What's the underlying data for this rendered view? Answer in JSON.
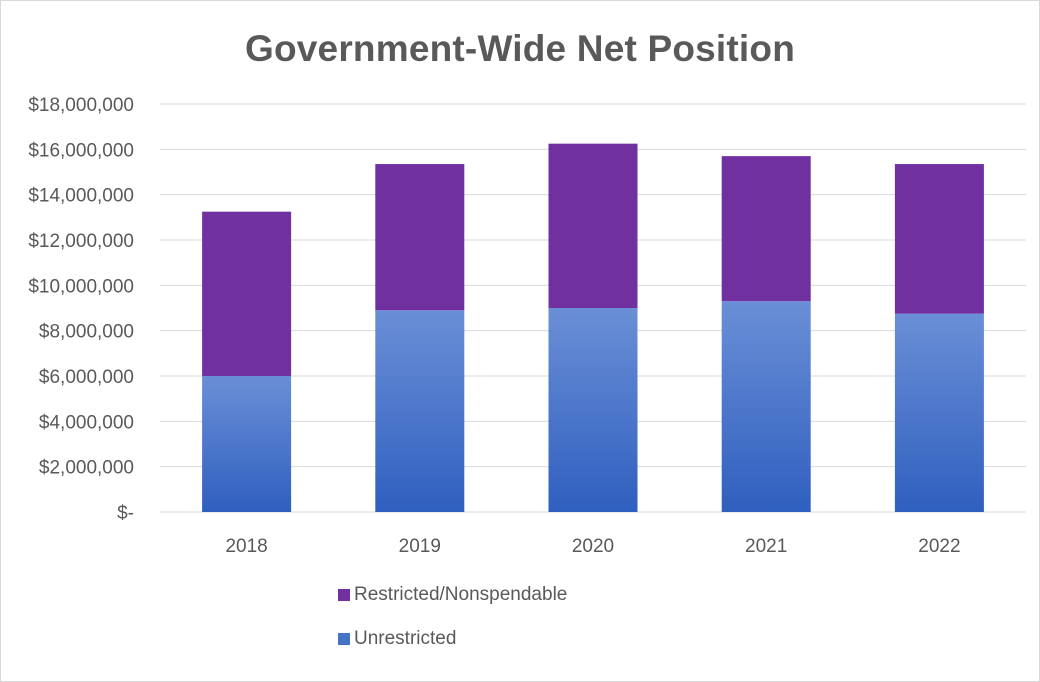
{
  "chart_data": {
    "type": "bar",
    "stacked": true,
    "title": "Government-Wide Net Position",
    "xlabel": "",
    "ylabel": "",
    "categories": [
      "2018",
      "2019",
      "2020",
      "2021",
      "2022"
    ],
    "ylim": [
      0,
      18000000
    ],
    "yticks": [
      0,
      2000000,
      4000000,
      6000000,
      8000000,
      10000000,
      12000000,
      14000000,
      16000000,
      18000000
    ],
    "ytick_labels": [
      "$-",
      "$2,000,000",
      "$4,000,000",
      "$6,000,000",
      "$8,000,000",
      "$10,000,000",
      "$12,000,000",
      "$14,000,000",
      "$16,000,000",
      "$18,000,000"
    ],
    "grid": true,
    "legend_position": "bottom",
    "series": [
      {
        "name": "Unrestricted",
        "color": "#4472c4",
        "values": [
          6000000,
          8900000,
          9000000,
          9300000,
          8750000
        ]
      },
      {
        "name": "Restricted/Nonspendable",
        "color": "#7030a0",
        "values": [
          7250000,
          6450000,
          7250000,
          6400000,
          6600000
        ]
      }
    ],
    "legend": [
      {
        "name": "Restricted/Nonspendable",
        "color": "#7030a0"
      },
      {
        "name": "Unrestricted",
        "color": "#4472c4"
      }
    ]
  }
}
